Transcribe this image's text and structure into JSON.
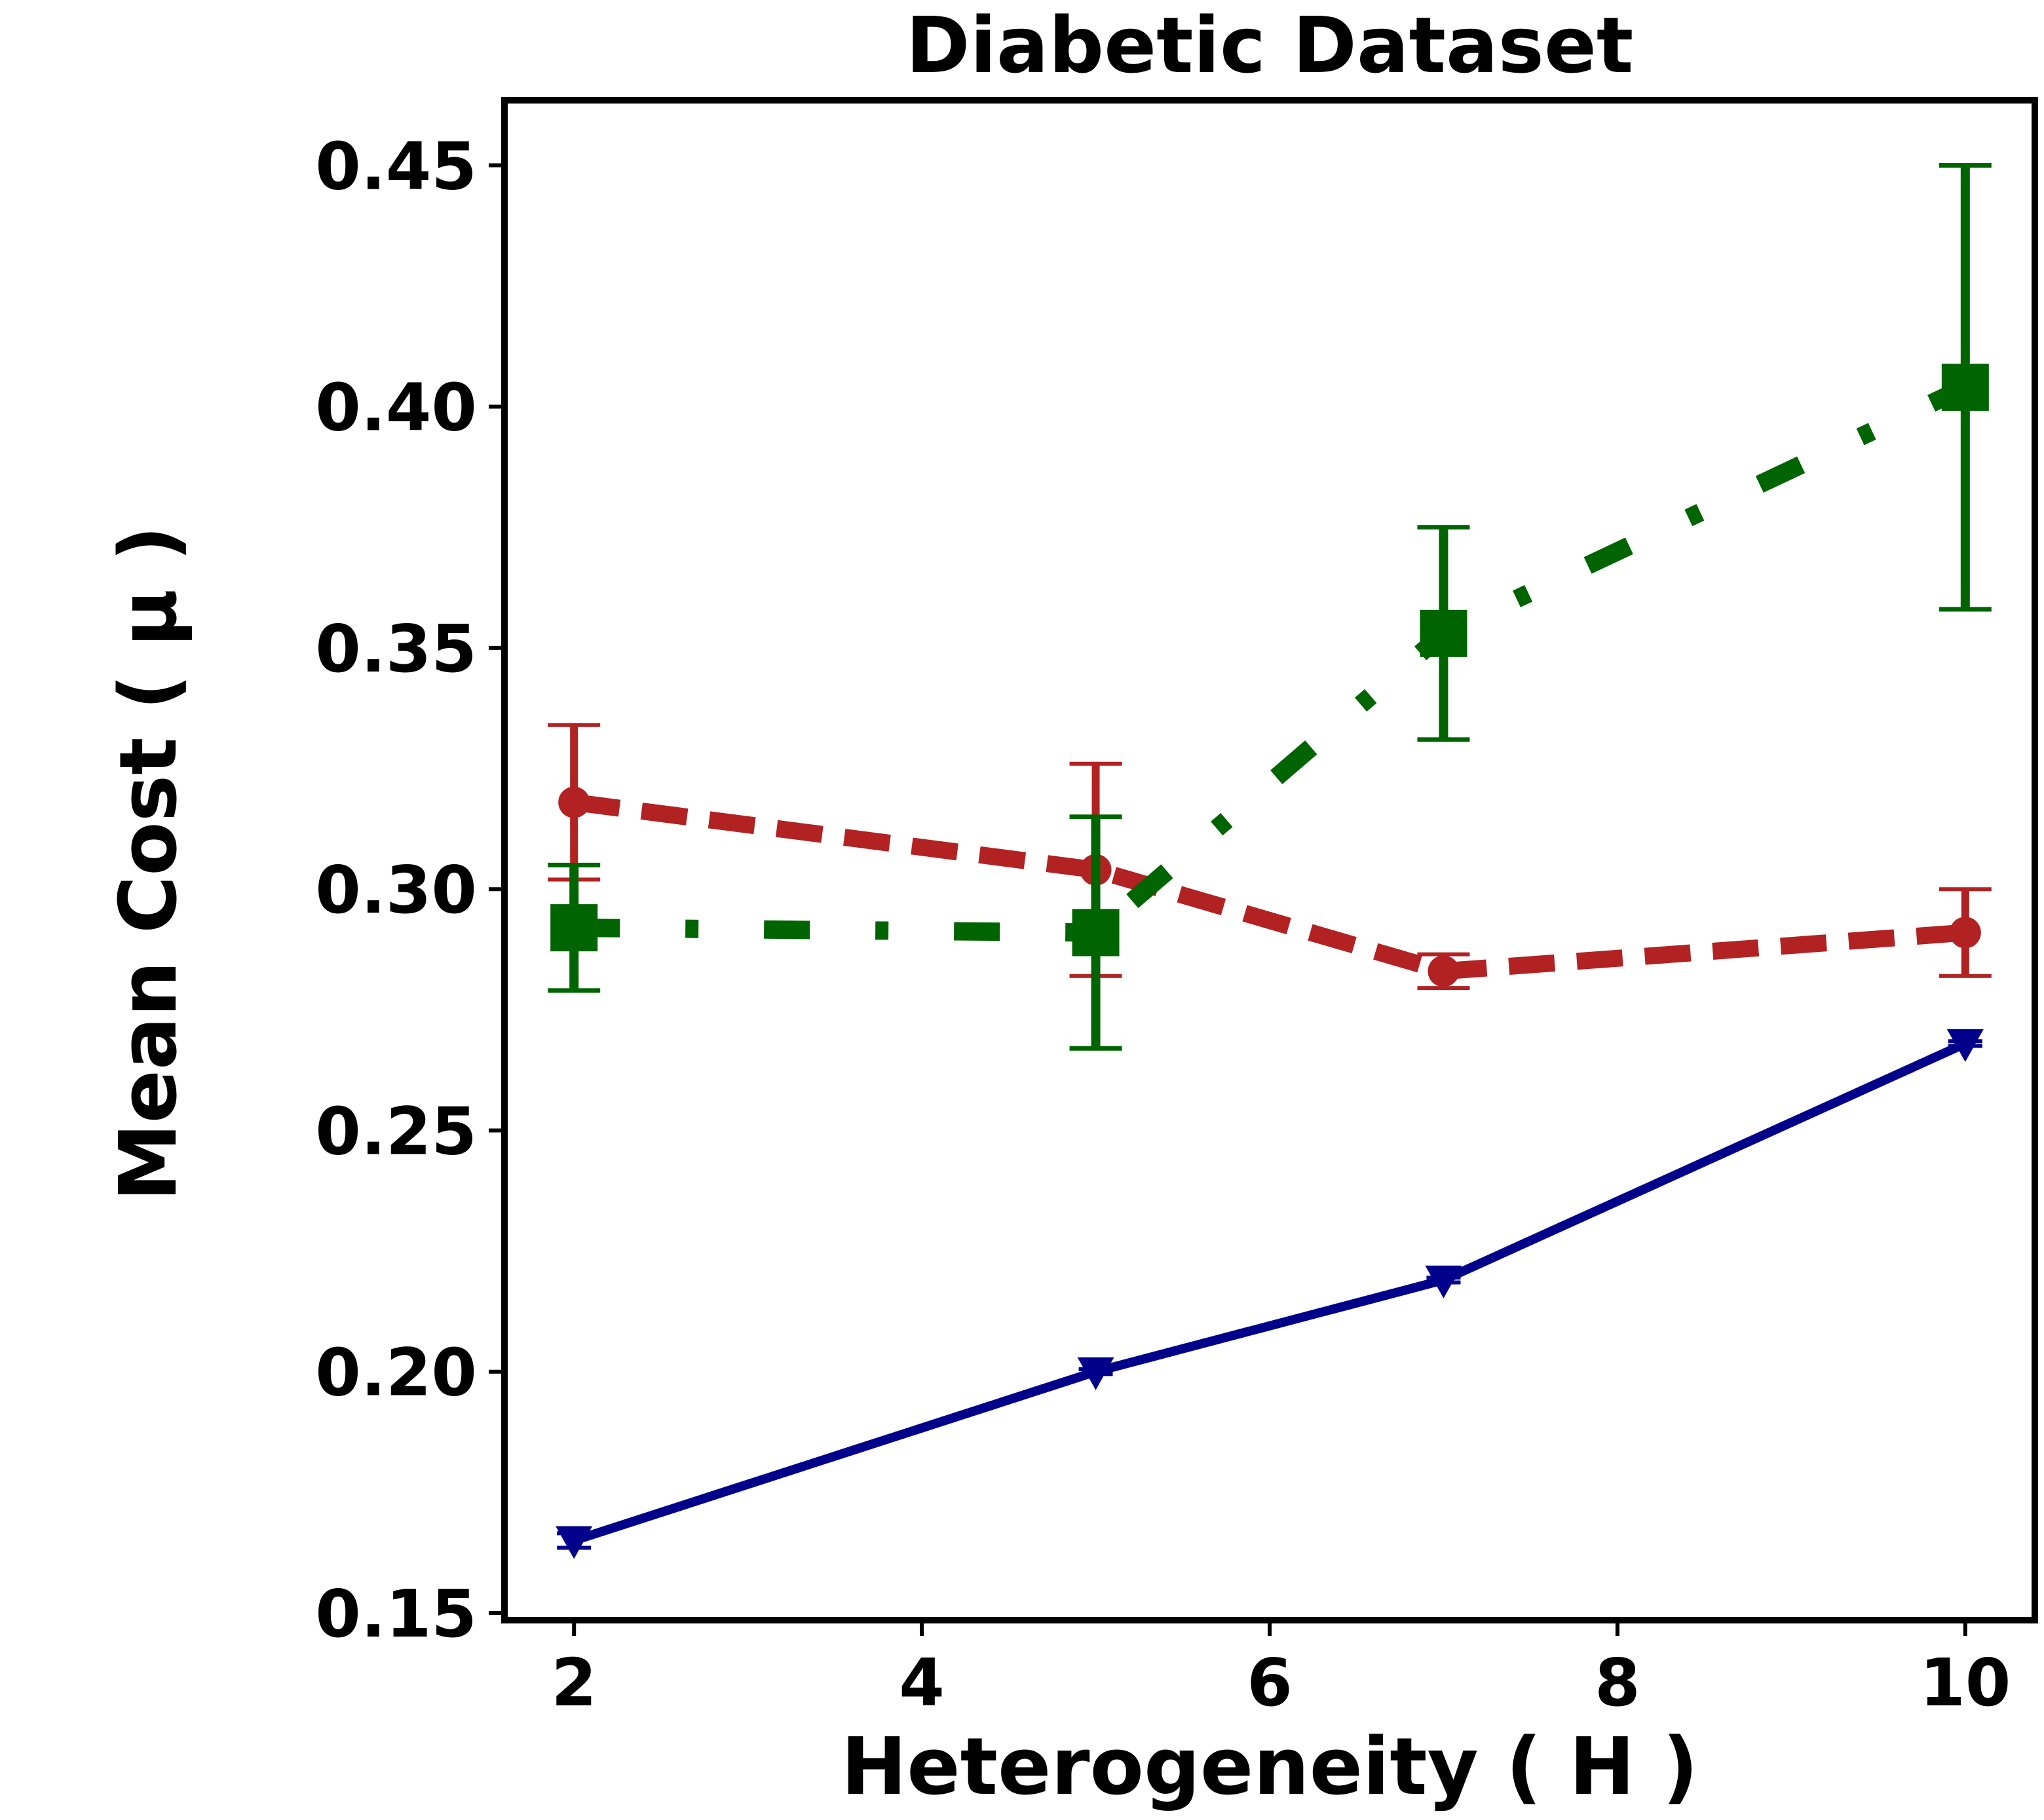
{
  "chart_data": {
    "type": "line",
    "title": "Diabetic Dataset",
    "xlabel": "Heterogeneity ( H )",
    "ylabel": "Mean Cost ( μ )",
    "xlim": [
      1.6,
      10.4
    ],
    "ylim": [
      0.1485,
      0.4635
    ],
    "xticks": [
      2,
      4,
      6,
      8,
      10
    ],
    "xtick_labels": [
      "2",
      "4",
      "6",
      "8",
      "10"
    ],
    "yticks": [
      0.15,
      0.2,
      0.25,
      0.3,
      0.35,
      0.4,
      0.45
    ],
    "ytick_labels": [
      "0.15",
      "0.20",
      "0.25",
      "0.30",
      "0.35",
      "0.40",
      "0.45"
    ],
    "grid": false,
    "legend": null,
    "x": [
      2,
      5,
      7,
      10
    ],
    "series": [
      {
        "name": "red-dashed-circle",
        "color": "#b22222",
        "marker": "circle",
        "linestyle": "dashed",
        "values": [
          0.318,
          0.304,
          0.283,
          0.291
        ],
        "errors": [
          0.016,
          0.022,
          0.0035,
          0.009
        ]
      },
      {
        "name": "green-dashdot-square",
        "color": "#006400",
        "marker": "square",
        "linestyle": "dashdot",
        "values": [
          0.292,
          0.291,
          0.353,
          0.404
        ],
        "errors": [
          0.013,
          0.024,
          0.022,
          0.046
        ]
      },
      {
        "name": "blue-solid-triangle",
        "color": "#00008b",
        "marker": "triangle-down",
        "linestyle": "solid",
        "values": [
          0.165,
          0.2,
          0.219,
          0.268
        ],
        "errors": [
          0.0015,
          0.0005,
          0.0005,
          0.0005
        ]
      }
    ]
  }
}
